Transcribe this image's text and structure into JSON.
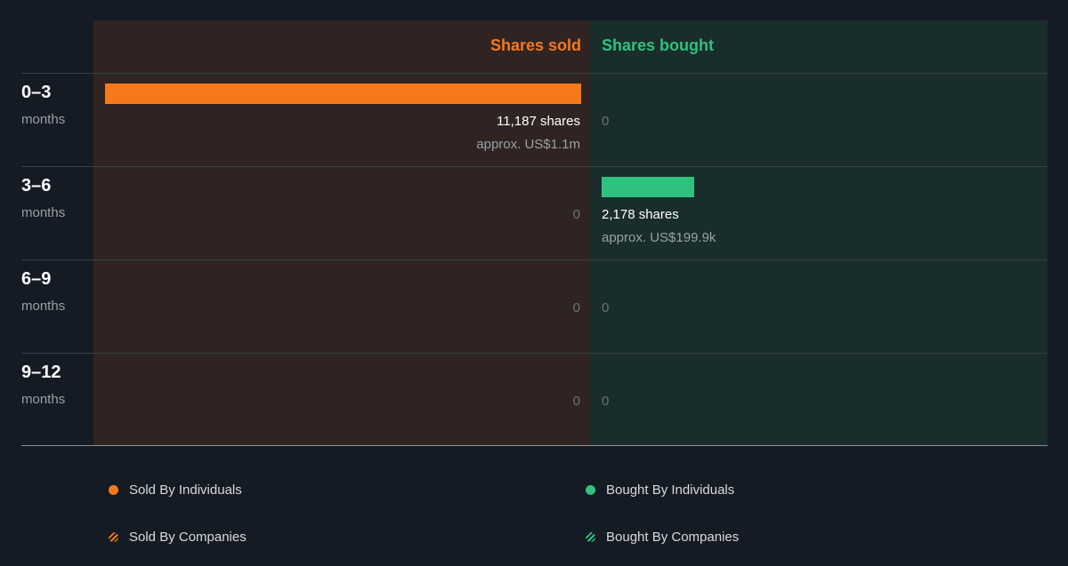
{
  "chart_data": {
    "type": "bar",
    "orientation": "horizontal-diverging",
    "categories": [
      {
        "main": "0–3",
        "sub": "months"
      },
      {
        "main": "3–6",
        "sub": "months"
      },
      {
        "main": "6–9",
        "sub": "months"
      },
      {
        "main": "9–12",
        "sub": "months"
      }
    ],
    "series": [
      {
        "name": "Shares sold",
        "color": "#f7781b",
        "values": [
          11187,
          0,
          0,
          0
        ],
        "labels": [
          "11,187 shares",
          "0",
          "0",
          "0"
        ],
        "approx": [
          "approx. US$1.1m",
          "",
          "",
          ""
        ]
      },
      {
        "name": "Shares bought",
        "color": "#2ec27e",
        "values": [
          0,
          2178,
          0,
          0
        ],
        "labels": [
          "0",
          "2,178 shares",
          "0",
          "0"
        ],
        "approx": [
          "",
          "approx. US$199.9k",
          "",
          ""
        ]
      }
    ],
    "max_value": 11187,
    "legend": [
      {
        "label": "Sold By Individuals",
        "color": "#f7781b",
        "style": "solid"
      },
      {
        "label": "Bought By Individuals",
        "color": "#2ec27e",
        "style": "solid"
      },
      {
        "label": "Sold By Companies",
        "color": "#f7781b",
        "style": "striped"
      },
      {
        "label": "Bought By Companies",
        "color": "#2ec27e",
        "style": "striped"
      }
    ],
    "legend_placement": "bottom"
  }
}
